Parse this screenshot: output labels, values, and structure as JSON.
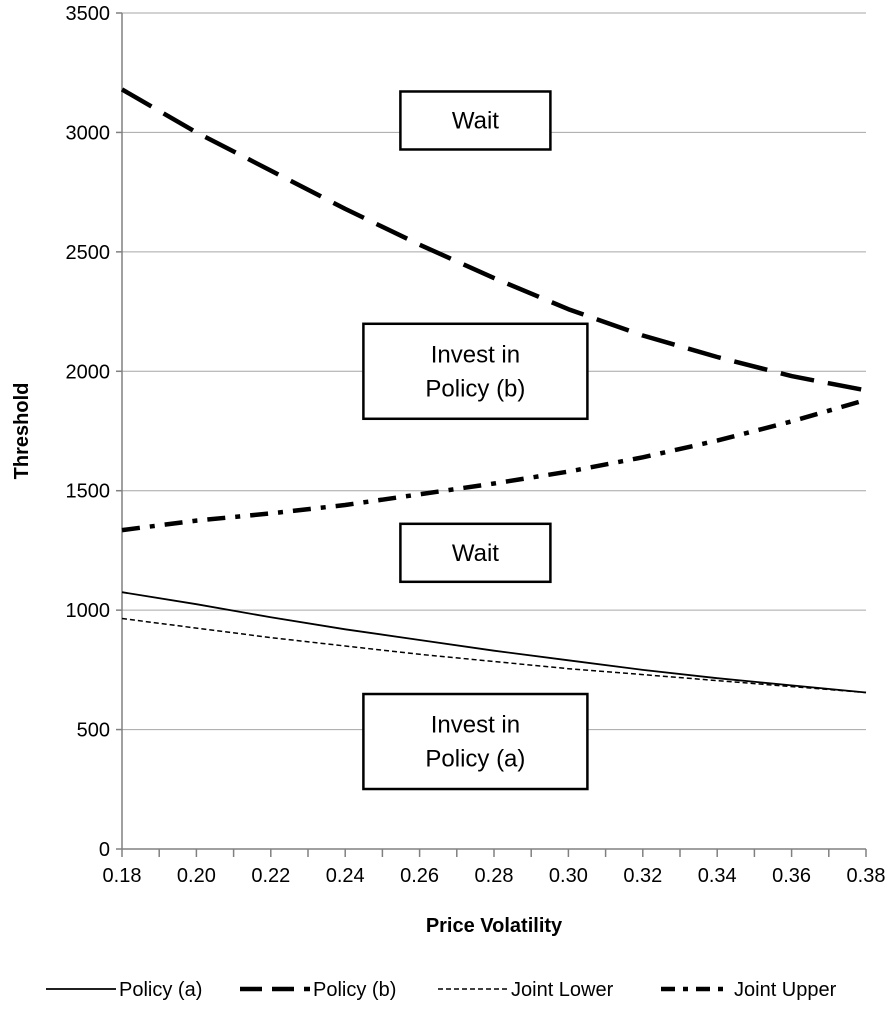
{
  "chart_data": {
    "type": "line",
    "xlabel": "Price Volatility",
    "ylabel": "Threshold",
    "xlim": [
      0.18,
      0.38
    ],
    "ylim": [
      0,
      3500
    ],
    "x_ticks": [
      "0.18",
      "0.20",
      "0.22",
      "0.24",
      "0.26",
      "0.28",
      "0.30",
      "0.32",
      "0.34",
      "0.36",
      "0.38"
    ],
    "y_ticks": [
      "0",
      "500",
      "1000",
      "1500",
      "2000",
      "2500",
      "3000",
      "3500"
    ],
    "grid": "horizontal",
    "legend_position": "bottom",
    "x": [
      0.18,
      0.2,
      0.22,
      0.24,
      0.26,
      0.28,
      0.3,
      0.32,
      0.34,
      0.36,
      0.38
    ],
    "series": [
      {
        "name": "Policy (a)",
        "style": "solid-thin",
        "color": "#000000",
        "values": [
          1075,
          1025,
          970,
          920,
          875,
          830,
          790,
          750,
          715,
          685,
          655
        ]
      },
      {
        "name": "Policy (b)",
        "style": "long-dash-thick",
        "color": "#000000",
        "values": [
          3180,
          3000,
          2840,
          2680,
          2530,
          2390,
          2260,
          2150,
          2060,
          1980,
          1920
        ]
      },
      {
        "name": "Joint Lower",
        "style": "short-dash-thin",
        "color": "#000000",
        "values": [
          965,
          925,
          885,
          850,
          815,
          785,
          755,
          730,
          705,
          680,
          655
        ]
      },
      {
        "name": "Joint Upper",
        "style": "dash-dot-thick",
        "color": "#000000",
        "values": [
          1335,
          1375,
          1405,
          1440,
          1485,
          1530,
          1580,
          1640,
          1710,
          1790,
          1880
        ]
      }
    ],
    "annotations": [
      {
        "lines": [
          "Wait"
        ],
        "x": 0.275,
        "y": 3050
      },
      {
        "lines": [
          "Invest in",
          "Policy (b)"
        ],
        "x": 0.275,
        "y": 2000
      },
      {
        "lines": [
          "Wait"
        ],
        "x": 0.275,
        "y": 1240
      },
      {
        "lines": [
          "Invest in",
          "Policy (a)"
        ],
        "x": 0.275,
        "y": 450
      }
    ]
  }
}
